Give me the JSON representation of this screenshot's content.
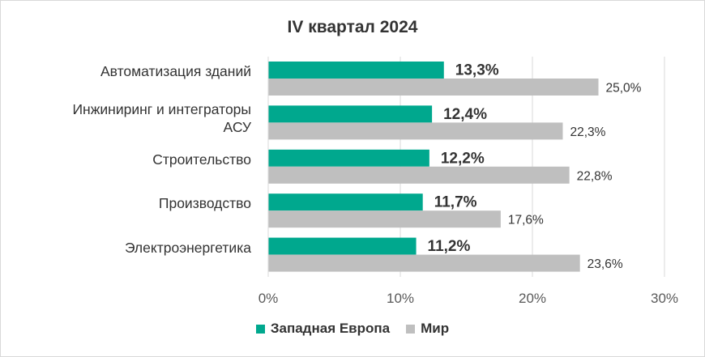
{
  "chart_data": {
    "type": "bar",
    "orientation": "horizontal",
    "title": "IV квартал 2024",
    "categories": [
      "Автоматизация зданий",
      "Инжиниринг и интеграторы АСУ",
      "Строительство",
      "Производство",
      "Электроэнергетика"
    ],
    "category_lines": [
      [
        "Автоматизация зданий"
      ],
      [
        "Инжиниринг и интеграторы",
        "АСУ"
      ],
      [
        "Строительство"
      ],
      [
        "Производство"
      ],
      [
        "Электроэнергетика"
      ]
    ],
    "series": [
      {
        "name": "Западная Европа",
        "color": "#00a88e",
        "values": [
          13.3,
          12.4,
          12.2,
          11.7,
          11.2
        ],
        "labels": [
          "13,3%",
          "12,4%",
          "12,2%",
          "11,7%",
          "11,2%"
        ]
      },
      {
        "name": "Мир",
        "color": "#bfbfbf",
        "values": [
          25.0,
          22.3,
          22.8,
          17.6,
          23.6
        ],
        "labels": [
          "25,0%",
          "22,3%",
          "22,8%",
          "17,6%",
          "23,6%"
        ]
      }
    ],
    "xlim": [
      0,
      30
    ],
    "xticks": [
      0,
      10,
      20,
      30
    ],
    "xtick_labels": [
      "0%",
      "10%",
      "20%",
      "30%"
    ],
    "grid": true,
    "legend_position": "bottom"
  }
}
